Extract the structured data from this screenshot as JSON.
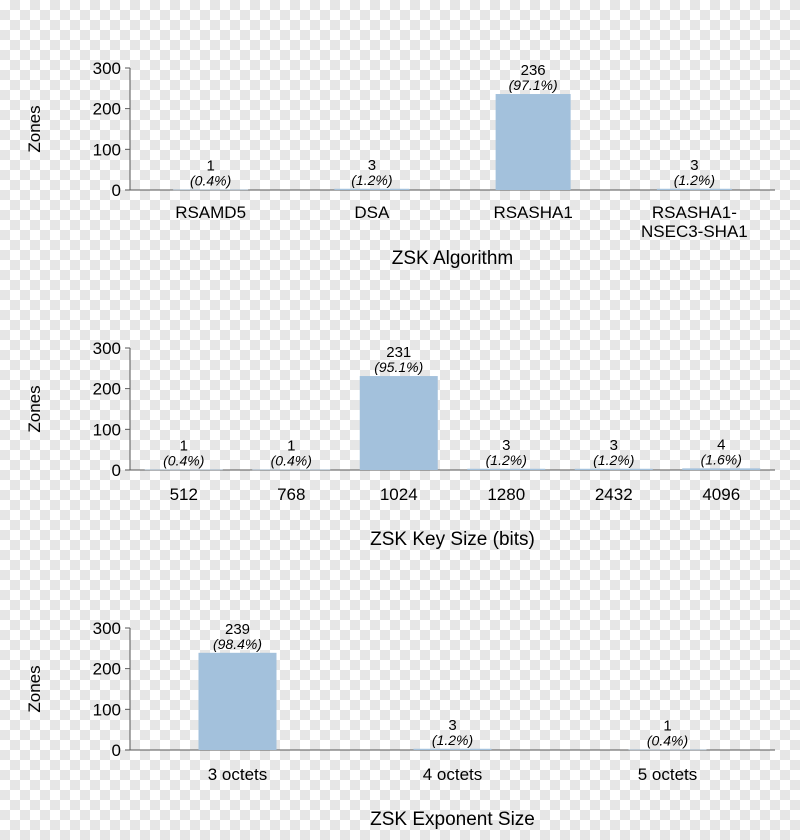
{
  "chart_data": [
    {
      "type": "bar",
      "title": "",
      "xlabel": "ZSK Algorithm",
      "ylabel": "Zones",
      "ylim": [
        0,
        300
      ],
      "yticks": [
        0,
        100,
        200,
        300
      ],
      "bar_color": "#a3c1dc",
      "categories": [
        [
          "RSAMD5"
        ],
        [
          "DSA"
        ],
        [
          "RSASHA1"
        ],
        [
          "RSASHA1-",
          "NSEC3-SHA1"
        ]
      ],
      "values": [
        1,
        3,
        236,
        3
      ],
      "percent_labels": [
        "(0.4%)",
        "(1.2%)",
        "(97.1%)",
        "(1.2%)"
      ]
    },
    {
      "type": "bar",
      "title": "",
      "xlabel": "ZSK Key Size (bits)",
      "ylabel": "Zones",
      "ylim": [
        0,
        300
      ],
      "yticks": [
        0,
        100,
        200,
        300
      ],
      "bar_color": "#a3c1dc",
      "categories": [
        [
          "512"
        ],
        [
          "768"
        ],
        [
          "1024"
        ],
        [
          "1280"
        ],
        [
          "2432"
        ],
        [
          "4096"
        ]
      ],
      "values": [
        1,
        1,
        231,
        3,
        3,
        4
      ],
      "percent_labels": [
        "(0.4%)",
        "(0.4%)",
        "(95.1%)",
        "(1.2%)",
        "(1.2%)",
        "(1.6%)"
      ]
    },
    {
      "type": "bar",
      "title": "",
      "xlabel": "ZSK Exponent Size",
      "ylabel": "Zones",
      "ylim": [
        0,
        300
      ],
      "yticks": [
        0,
        100,
        200,
        300
      ],
      "bar_color": "#a3c1dc",
      "categories": [
        [
          "3 octets"
        ],
        [
          "4 octets"
        ],
        [
          "5 octets"
        ]
      ],
      "values": [
        239,
        3,
        1
      ],
      "percent_labels": [
        "(98.4%)",
        "(1.2%)",
        "(0.4%)"
      ]
    }
  ]
}
